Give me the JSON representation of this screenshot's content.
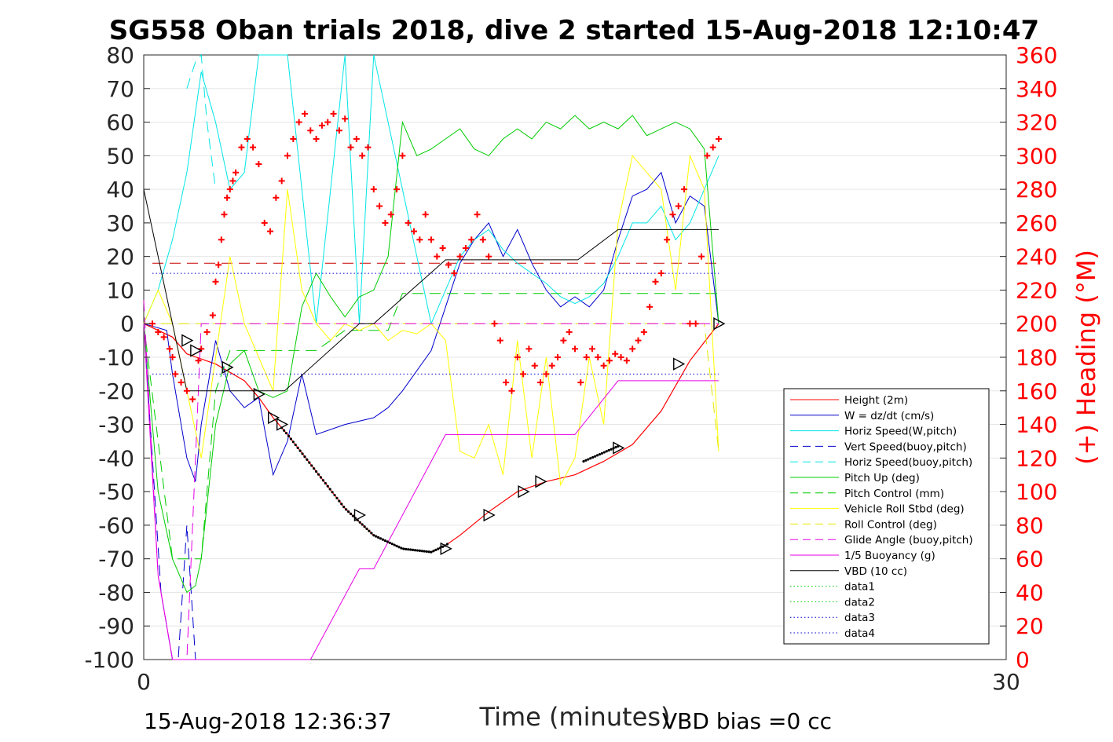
{
  "chart_data": {
    "type": "line",
    "title": "SG558 Oban trials 2018, dive 2 started 15-Aug-2018 12:10:47",
    "xlabel": "Time (minutes)",
    "ylabel_right": "(+) Heading (°M)",
    "footer_left": "15-Aug-2018 12:36:37",
    "footer_right": "VBD bias =0 cc",
    "xlim": [
      0,
      30
    ],
    "ylim_left": [
      -100,
      80
    ],
    "ylim_right": [
      0,
      360
    ],
    "x_ticks": [
      "0",
      "30"
    ],
    "y_ticks_left": [
      "80",
      "70",
      "60",
      "50",
      "40",
      "30",
      "20",
      "10",
      "0",
      "-10",
      "-20",
      "-30",
      "-40",
      "-50",
      "-60",
      "-70",
      "-80",
      "-90",
      "-100"
    ],
    "y_ticks_right": [
      "360",
      "340",
      "320",
      "300",
      "280",
      "260",
      "240",
      "220",
      "200",
      "180",
      "160",
      "140",
      "120",
      "100",
      "80",
      "60",
      "40",
      "20",
      "0"
    ],
    "grid": true,
    "legend_position": "lower-right",
    "colors": {
      "height": "#ff0000",
      "w": "#0000cd",
      "horiz_w": "#00e5e5",
      "vert_buoy": "#0000cd",
      "horiz_buoy": "#00e5e5",
      "pitch_up": "#00cc00",
      "pitch_ctrl": "#00cc00",
      "roll": "#ffff00",
      "roll_ctrl": "#e6e600",
      "glide": "#e600e6",
      "buoy": "#e600e6",
      "vbd": "#000000",
      "heading": "#ff0000"
    },
    "series": [
      {
        "name": "Height (2m)",
        "style": "solid",
        "color": "#ff0000",
        "x": [
          0,
          1,
          1.5,
          2.5,
          3.5,
          4,
          4.5,
          5,
          6,
          7,
          8,
          9,
          10,
          10.5,
          11,
          12,
          13,
          14,
          15,
          16,
          17,
          18,
          19,
          20
        ],
        "y": [
          0,
          -4,
          -9,
          -12,
          -17,
          -22,
          -28,
          -33,
          -44,
          -55,
          -63,
          -67,
          -68,
          -66,
          -63,
          -56,
          -50,
          -47,
          -45,
          -41,
          -36,
          -26,
          -11,
          0
        ]
      },
      {
        "name": "W = dz/dt (cm/s)",
        "style": "solid",
        "color": "#0000cd",
        "x": [
          0,
          0.8,
          1,
          1.5,
          1.8,
          2,
          2.5,
          3,
          3.5,
          4,
          4.5,
          5,
          5.5,
          6,
          7,
          8,
          8.5,
          9,
          10,
          10.5,
          11,
          11.5,
          12,
          12.5,
          13,
          13.5,
          14,
          14.5,
          15,
          15.5,
          16,
          16.5,
          17,
          17.5,
          18,
          18.5,
          19,
          19.5,
          20
        ],
        "y": [
          0,
          -2,
          -15,
          -40,
          -47,
          -30,
          -5,
          -20,
          -25,
          -22,
          -45,
          -35,
          -15,
          -33,
          -30,
          -28,
          -25,
          -20,
          -8,
          5,
          18,
          25,
          30,
          20,
          28,
          18,
          10,
          5,
          8,
          5,
          10,
          25,
          38,
          40,
          45,
          30,
          38,
          35,
          0
        ]
      },
      {
        "name": "Horiz Speed(W,pitch)",
        "style": "solid",
        "color": "#00e5e5",
        "x": [
          0,
          0.5,
          1,
          1.5,
          2,
          2.5,
          3,
          3.5,
          4,
          5,
          6,
          7,
          7.5,
          8,
          9,
          9.5,
          10,
          10.5,
          11,
          11.5,
          12,
          12.5,
          13,
          13.5,
          14,
          14.5,
          15,
          15.5,
          16,
          16.5,
          17,
          17.5,
          18,
          18.5,
          19,
          19.5,
          20
        ],
        "y": [
          0,
          10,
          25,
          45,
          75,
          60,
          40,
          45,
          80,
          80,
          0,
          80,
          0,
          80,
          40,
          20,
          0,
          10,
          20,
          25,
          28,
          22,
          18,
          15,
          12,
          8,
          6,
          8,
          12,
          20,
          30,
          30,
          35,
          25,
          30,
          40,
          50
        ]
      },
      {
        "name": "Vert Speed(buoy,pitch)",
        "style": "dashed",
        "color": "#0000cd",
        "x": [
          0,
          0.3,
          0.6,
          1,
          1.2,
          1.5,
          1.8,
          2
        ],
        "y": [
          0,
          -40,
          -80,
          -100,
          -100,
          -60,
          -100,
          -100
        ]
      },
      {
        "name": "Horiz Speed(buoy,pitch)",
        "style": "dashed",
        "color": "#00e5e5",
        "x": [
          1.5,
          1.8,
          2,
          2.2,
          2.5
        ],
        "y": [
          70,
          78,
          80,
          60,
          40
        ]
      },
      {
        "name": "Pitch Up (deg)",
        "style": "solid",
        "color": "#00cc00",
        "x": [
          0,
          0.5,
          1,
          1.5,
          1.8,
          2,
          2.5,
          3,
          3.5,
          4,
          4.5,
          5,
          5.5,
          6,
          6.5,
          7,
          7.5,
          8,
          8.5,
          9,
          9.5,
          10,
          10.5,
          11,
          11.5,
          12,
          12.5,
          13,
          13.5,
          14,
          14.5,
          15,
          15.5,
          16,
          16.5,
          17,
          17.5,
          18,
          18.5,
          19,
          19.5,
          20
        ],
        "y": [
          0,
          -50,
          -70,
          -80,
          -78,
          -70,
          -30,
          -12,
          -8,
          -20,
          -22,
          -20,
          5,
          15,
          8,
          2,
          8,
          10,
          20,
          60,
          50,
          52,
          55,
          58,
          52,
          50,
          55,
          58,
          55,
          60,
          58,
          62,
          58,
          60,
          58,
          62,
          56,
          58,
          60,
          58,
          52,
          0
        ]
      },
      {
        "name": "Pitch Control (mm)",
        "style": "dashed",
        "color": "#00cc00",
        "x": [
          0,
          1,
          1.5,
          2,
          2.5,
          3,
          3.5,
          4,
          5,
          6,
          7,
          8,
          8.5,
          9,
          10,
          11,
          12,
          13,
          14,
          15,
          16,
          17,
          18,
          19,
          20
        ],
        "y": [
          0,
          -70,
          -70,
          -70,
          -20,
          -8,
          -8,
          -8,
          -8,
          -8,
          -2,
          -2,
          -2,
          9,
          9,
          9,
          9,
          9,
          9,
          9,
          9,
          9,
          9,
          9,
          9
        ]
      },
      {
        "name": "Vehicle Roll Stbd (deg)",
        "style": "solid",
        "color": "#ffff00",
        "x": [
          0,
          0.5,
          1,
          1.5,
          2,
          2.5,
          3,
          3.5,
          4,
          4.5,
          5,
          5.5,
          6,
          6.5,
          7,
          7.5,
          8,
          8.5,
          9,
          9.5,
          10,
          10.5,
          11,
          11.5,
          12,
          12.5,
          13,
          13.5,
          14,
          14.5,
          15,
          15.5,
          16,
          16.5,
          17,
          17.5,
          18,
          18.5,
          19,
          19.5,
          20
        ],
        "y": [
          0,
          10,
          0,
          -20,
          -40,
          -10,
          20,
          0,
          -10,
          -20,
          40,
          10,
          0,
          -5,
          0,
          -2,
          0,
          -5,
          -2,
          -3,
          0,
          -5,
          -38,
          -40,
          -30,
          -45,
          -5,
          -40,
          -10,
          -48,
          -40,
          -10,
          -30,
          30,
          50,
          45,
          40,
          10,
          50,
          40,
          -38
        ]
      },
      {
        "name": "Roll Control (deg)",
        "style": "dashed",
        "color": "#e6e600",
        "x": [
          0,
          2,
          4,
          6,
          8,
          10,
          12,
          14,
          16,
          18,
          19.5,
          20
        ],
        "y": [
          0,
          0,
          0,
          0,
          0,
          0,
          0,
          0,
          0,
          0,
          0,
          -38
        ]
      },
      {
        "name": "Glide Angle (buoy,pitch)",
        "style": "dashed",
        "color": "#e600e6",
        "x": [
          0,
          0.5,
          1,
          1.5,
          2,
          4,
          6,
          8,
          10,
          12,
          14,
          16,
          18,
          20
        ],
        "y": [
          7,
          -75,
          -100,
          -100,
          0,
          0,
          0,
          0,
          0,
          0,
          0,
          0,
          0,
          0
        ]
      },
      {
        "name": "1/5 Buoyancy (g)",
        "style": "solid",
        "color": "#e600e6",
        "x": [
          0,
          0.5,
          1,
          5.8,
          7.5,
          8,
          10.5,
          12,
          15,
          16.5,
          18,
          20
        ],
        "y": [
          0,
          -75,
          -100,
          -100,
          -73,
          -73,
          -33,
          -33,
          -33,
          -17,
          -17,
          -17
        ]
      },
      {
        "name": "VBD (10 cc)",
        "style": "solid",
        "color": "#000000",
        "x": [
          0,
          1.5,
          4.9,
          7.5,
          8,
          10.5,
          15.1,
          16.5,
          20
        ],
        "y": [
          40,
          -20,
          -20,
          0,
          0,
          19,
          19,
          28,
          28
        ]
      },
      {
        "name": "data1",
        "style": "dotted",
        "color": "#00cc00",
        "x": [],
        "y": []
      },
      {
        "name": "data2",
        "style": "dotted",
        "color": "#00cc00",
        "x": [],
        "y": []
      },
      {
        "name": "data3",
        "style": "dotted",
        "color": "#0000cd",
        "x": [
          0.3,
          20
        ],
        "y": [
          15,
          15
        ]
      },
      {
        "name": "data4",
        "style": "dotted",
        "color": "#0000cd",
        "x": [
          0.3,
          20
        ],
        "y": [
          -15,
          -15
        ]
      }
    ],
    "reference_lines": [
      {
        "style": "dashed",
        "color": "#cc0000",
        "y": 18,
        "x": [
          0.3,
          20
        ]
      }
    ],
    "heading": {
      "marker": "+",
      "color": "#ff0000",
      "x": [
        0.3,
        0.5,
        0.7,
        0.9,
        1.0,
        1.1,
        1.3,
        1.5,
        1.7,
        1.9,
        2.0,
        2.2,
        2.4,
        2.5,
        2.6,
        2.7,
        2.8,
        2.9,
        3.0,
        3.1,
        3.2,
        3.4,
        3.6,
        3.8,
        4.0,
        4.2,
        4.4,
        4.6,
        4.8,
        5.0,
        5.2,
        5.4,
        5.6,
        5.8,
        6.0,
        6.2,
        6.4,
        6.6,
        6.8,
        7.0,
        7.2,
        7.4,
        7.6,
        7.8,
        8.0,
        8.2,
        8.4,
        8.6,
        8.8,
        9.0,
        9.2,
        9.4,
        9.6,
        9.8,
        10.0,
        10.2,
        10.4,
        10.6,
        10.8,
        11.0,
        11.2,
        11.4,
        11.6,
        11.8,
        12.0,
        12.2,
        12.4,
        12.6,
        12.8,
        13.0,
        13.2,
        13.4,
        13.6,
        13.8,
        14.0,
        14.2,
        14.4,
        14.6,
        14.8,
        15.0,
        15.2,
        15.4,
        15.6,
        15.8,
        16.0,
        16.2,
        16.4,
        16.6,
        16.8,
        17.0,
        17.2,
        17.4,
        17.6,
        17.8,
        18.0,
        18.2,
        18.4,
        18.6,
        18.8,
        19.0,
        19.2,
        19.4,
        19.6,
        19.8,
        20.0
      ],
      "y": [
        200,
        195,
        192,
        185,
        180,
        170,
        165,
        160,
        155,
        178,
        185,
        195,
        205,
        225,
        235,
        250,
        265,
        275,
        280,
        285,
        290,
        305,
        310,
        305,
        295,
        260,
        255,
        275,
        285,
        300,
        310,
        320,
        325,
        315,
        310,
        318,
        320,
        325,
        315,
        322,
        305,
        310,
        300,
        305,
        280,
        270,
        260,
        265,
        280,
        300,
        260,
        255,
        250,
        265,
        250,
        240,
        245,
        235,
        230,
        240,
        245,
        250,
        265,
        250,
        240,
        200,
        190,
        165,
        160,
        180,
        170,
        185,
        175,
        165,
        170,
        175,
        180,
        190,
        195,
        185,
        165,
        180,
        185,
        180,
        175,
        178,
        182,
        180,
        178,
        185,
        190,
        195,
        210,
        225,
        230,
        250,
        265,
        270,
        280,
        200,
        200,
        240,
        300,
        305,
        310
      ]
    },
    "depth_markers": {
      "x": [
        1.5,
        1.8,
        2.9,
        4.0,
        4.5,
        4.8,
        7.5,
        10.5,
        12.0,
        13.2,
        13.8,
        16.5,
        18.6,
        20.0
      ],
      "y": [
        -5,
        -8,
        -13,
        -21,
        -28,
        -30,
        -57,
        -67,
        -57,
        -50,
        -47,
        -37,
        -12,
        0
      ]
    }
  },
  "legend": {
    "items": [
      {
        "label": "Height (2m)",
        "color": "#ff0000",
        "dash": ""
      },
      {
        "label": "W = dz/dt (cm/s)",
        "color": "#0000cd",
        "dash": ""
      },
      {
        "label": "Horiz Speed(W,pitch)",
        "color": "#00e5e5",
        "dash": ""
      },
      {
        "label": "Vert Speed(buoy,pitch)",
        "color": "#0000cd",
        "dash": "10,6"
      },
      {
        "label": "Horiz Speed(buoy,pitch)",
        "color": "#00e5e5",
        "dash": "10,6"
      },
      {
        "label": "Pitch Up (deg)",
        "color": "#00cc00",
        "dash": ""
      },
      {
        "label": "Pitch Control (mm)",
        "color": "#00cc00",
        "dash": "10,6"
      },
      {
        "label": "Vehicle Roll Stbd (deg)",
        "color": "#ffff00",
        "dash": ""
      },
      {
        "label": "Roll Control (deg)",
        "color": "#e6e600",
        "dash": "10,6"
      },
      {
        "label": "Glide Angle (buoy,pitch)",
        "color": "#e600e6",
        "dash": "10,6"
      },
      {
        "label": "1/5 Buoyancy (g)",
        "color": "#e600e6",
        "dash": ""
      },
      {
        "label": "VBD (10 cc)",
        "color": "#000000",
        "dash": ""
      },
      {
        "label": "data1",
        "color": "#00cc00",
        "dash": "1.5,3"
      },
      {
        "label": "data2",
        "color": "#00cc00",
        "dash": "1.5,3"
      },
      {
        "label": "data3",
        "color": "#0000cd",
        "dash": "1.5,3"
      },
      {
        "label": "data4",
        "color": "#0000cd",
        "dash": "1.5,3"
      }
    ]
  }
}
